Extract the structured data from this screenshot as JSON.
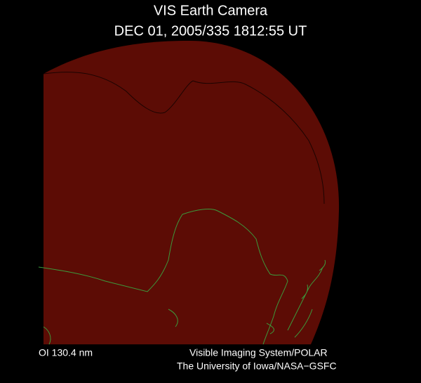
{
  "header": {
    "title": "VIS Earth Camera",
    "timestamp": "DEC 01, 2005/335 1812:55 UT"
  },
  "footer": {
    "filter": "OI  130.4 nm",
    "instrument": "Visible Imaging System/POLAR",
    "credit": "The University of Iowa/NASA−GSFC"
  }
}
